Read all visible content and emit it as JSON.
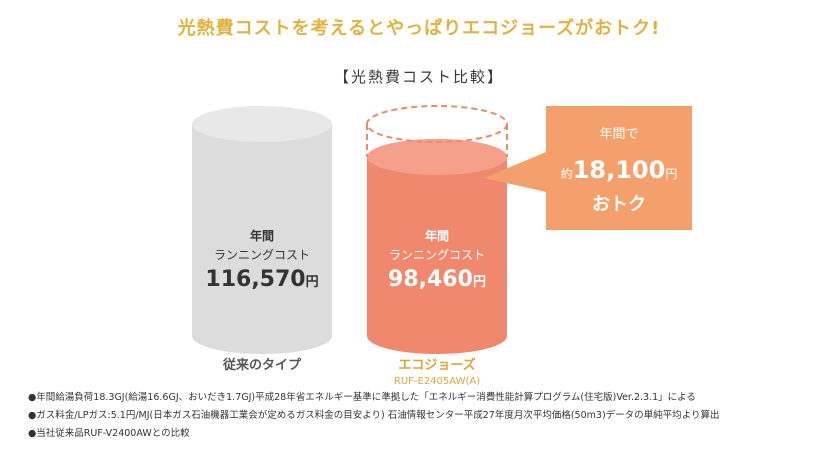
{
  "headline": "光熱費コストを考えるとやっぱりエコジョーズがおトク!",
  "colors": {
    "headline": "#e0b341",
    "conventional": "#dcdcdc",
    "ecojozu": "#f0886e",
    "callout": "#f4a06c"
  },
  "chart_data": {
    "type": "bar",
    "title": "【光熱費コスト比較】",
    "value_caption": [
      "年間",
      "ランニングコスト"
    ],
    "unit": "円",
    "categories": [
      "従来のタイプ",
      "エコジョーズ"
    ],
    "values": [
      116570,
      98460
    ],
    "value_labels": [
      "116,570",
      "98,460"
    ],
    "sublabels": [
      "",
      "RUF-E2405AW(A)"
    ],
    "callout": {
      "line1": "年間で",
      "prefix": "約",
      "amount": "18,100",
      "unit": "円",
      "line3": "おトク"
    }
  },
  "notes": [
    "●年間給湯負荷18.3GJ(給湯16.6GJ、おいだき1.7GJ)平成28年省エネルギー基準に準拠した「エネルギー消費性能計算プログラム(住宅版)Ver.2.3.1」による",
    "●ガス料金/LPガス:5.1円/MJ(日本ガス石油機器工業会が定めるガス料金の目安より) 石油情報センター平成27年度月次平均価格(50m3)データの単純平均より算出",
    "●当社従来品RUF-V2400AWとの比較"
  ]
}
